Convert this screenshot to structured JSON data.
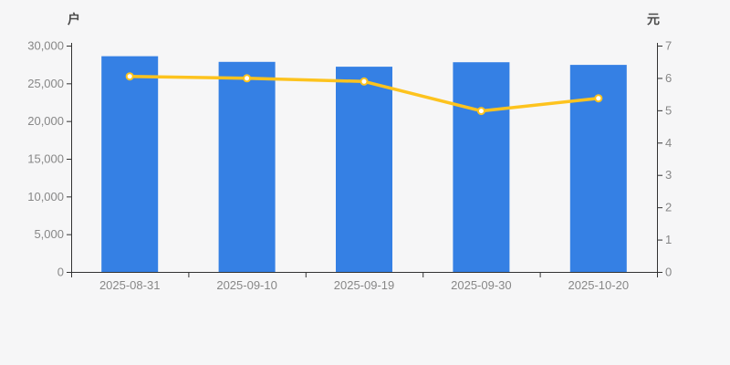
{
  "page": {
    "background": "#f6f6f7"
  },
  "chart_data": {
    "type": "bar",
    "subtype": "bar+line dual-axis",
    "categories": [
      "2025-08-31",
      "2025-09-10",
      "2025-09-19",
      "2025-09-30",
      "2025-10-20"
    ],
    "series": [
      {
        "name": "户",
        "type": "bar",
        "axis": "left",
        "color": "#3580e4",
        "values": [
          28600,
          27850,
          27200,
          27800,
          27450
        ]
      },
      {
        "name": "元",
        "type": "line",
        "axis": "right",
        "color": "#fdc31e",
        "marker_fill": "#ffffff",
        "values": [
          6.05,
          5.99,
          5.89,
          4.98,
          5.37
        ]
      }
    ],
    "left_axis": {
      "label": "户",
      "min": 0,
      "max": 30000,
      "step": 5000,
      "tick_labels": [
        "0",
        "5,000",
        "10,000",
        "15,000",
        "20,000",
        "25,000",
        "30,000"
      ]
    },
    "right_axis": {
      "label": "元",
      "min": 0,
      "max": 7,
      "step": 1,
      "tick_labels": [
        "0",
        "1",
        "2",
        "3",
        "4",
        "5",
        "6",
        "7"
      ]
    },
    "grid": false,
    "legend": false,
    "title": "",
    "axis_color": "#333333",
    "tick_label_color": "#878787",
    "axis_name_color": "#4a4a4a"
  }
}
